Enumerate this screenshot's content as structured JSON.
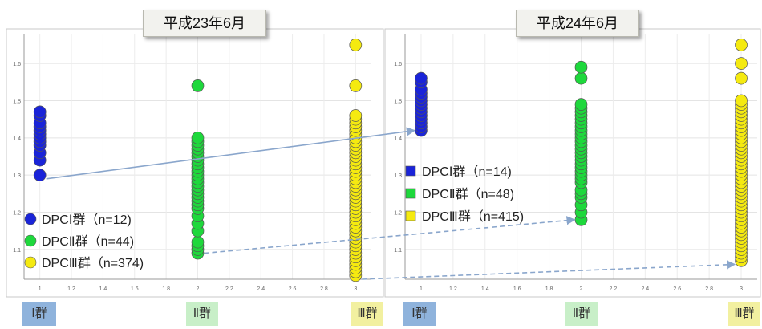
{
  "colors": {
    "group1": "#1a24d8",
    "group2": "#1ed83c",
    "group3": "#f5ea10",
    "group1_label_bg": "#8fb3dc",
    "group2_label_bg": "#c8efc8",
    "group3_label_bg": "#f2f0a0",
    "arrow": "#8aa6cc"
  },
  "group_labels": [
    "Ⅰ群",
    "Ⅱ群",
    "Ⅲ群"
  ],
  "chart_data": [
    {
      "type": "scatter",
      "title": "平成23年6月",
      "xlim": [
        0.9,
        3.1
      ],
      "ylim": [
        1.02,
        1.68
      ],
      "x_ticks": [
        "1",
        "1.2",
        "1.4",
        "1.6",
        "1.8",
        "2",
        "2.2",
        "2.4",
        "2.6",
        "2.8",
        "3"
      ],
      "y_ticks": [
        "1.1",
        "1.2",
        "1.3",
        "1.4",
        "1.5",
        "1.6"
      ],
      "legend_position": "bottom-left",
      "legend_marker": "circle",
      "series": [
        {
          "name": "DPCⅠ群（n=12)",
          "x": 1,
          "values": [
            1.3,
            1.34,
            1.36,
            1.38,
            1.39,
            1.4,
            1.41,
            1.42,
            1.43,
            1.44,
            1.46,
            1.47
          ]
        },
        {
          "name": "DPCⅡ群（n=44)",
          "x": 2,
          "values": [
            1.09,
            1.1,
            1.11,
            1.12,
            1.15,
            1.17,
            1.19,
            1.21,
            1.22,
            1.23,
            1.24,
            1.25,
            1.26,
            1.27,
            1.28,
            1.29,
            1.3,
            1.31,
            1.32,
            1.33,
            1.34,
            1.35,
            1.36,
            1.37,
            1.38,
            1.39,
            1.4,
            1.54
          ]
        },
        {
          "name": "DPCⅢ群（n=374)",
          "x": 3,
          "values": [
            1.03,
            1.04,
            1.05,
            1.06,
            1.07,
            1.08,
            1.09,
            1.1,
            1.11,
            1.12,
            1.13,
            1.14,
            1.15,
            1.16,
            1.17,
            1.18,
            1.19,
            1.2,
            1.21,
            1.22,
            1.23,
            1.24,
            1.25,
            1.26,
            1.27,
            1.28,
            1.29,
            1.3,
            1.31,
            1.32,
            1.33,
            1.34,
            1.35,
            1.36,
            1.37,
            1.38,
            1.39,
            1.4,
            1.41,
            1.42,
            1.43,
            1.44,
            1.45,
            1.46,
            1.54,
            1.65
          ]
        }
      ]
    },
    {
      "type": "scatter",
      "title": "平成24年6月",
      "xlim": [
        0.9,
        3.1
      ],
      "ylim": [
        1.02,
        1.68
      ],
      "x_ticks": [
        "1",
        "1.2",
        "1.4",
        "1.6",
        "1.8",
        "2",
        "2.2",
        "2.4",
        "2.6",
        "2.8",
        "3"
      ],
      "y_ticks": [
        "1.1",
        "1.2",
        "1.3",
        "1.4",
        "1.5",
        "1.6"
      ],
      "legend_position": "middle-left",
      "legend_marker": "square",
      "series": [
        {
          "name": "DPCⅠ群（n=14)",
          "x": 1,
          "values": [
            1.42,
            1.43,
            1.44,
            1.45,
            1.46,
            1.47,
            1.48,
            1.49,
            1.5,
            1.51,
            1.52,
            1.53,
            1.55,
            1.56
          ]
        },
        {
          "name": "DPCⅡ群（n=48)",
          "x": 2,
          "values": [
            1.18,
            1.2,
            1.22,
            1.24,
            1.25,
            1.26,
            1.28,
            1.29,
            1.3,
            1.31,
            1.32,
            1.33,
            1.34,
            1.35,
            1.36,
            1.37,
            1.38,
            1.39,
            1.4,
            1.41,
            1.42,
            1.43,
            1.44,
            1.45,
            1.46,
            1.47,
            1.48,
            1.49,
            1.56,
            1.59
          ]
        },
        {
          "name": "DPCⅢ群（n=415)",
          "x": 3,
          "values": [
            1.07,
            1.08,
            1.09,
            1.1,
            1.11,
            1.12,
            1.13,
            1.14,
            1.15,
            1.16,
            1.17,
            1.18,
            1.19,
            1.2,
            1.21,
            1.22,
            1.23,
            1.24,
            1.25,
            1.26,
            1.27,
            1.28,
            1.29,
            1.3,
            1.31,
            1.32,
            1.33,
            1.34,
            1.35,
            1.36,
            1.37,
            1.38,
            1.39,
            1.4,
            1.41,
            1.42,
            1.43,
            1.44,
            1.45,
            1.46,
            1.47,
            1.48,
            1.49,
            1.5,
            1.56,
            1.6,
            1.65
          ]
        }
      ]
    }
  ],
  "arrows": [
    {
      "from_chart": 0,
      "from_x": 1,
      "from_y": 1.29,
      "to_chart": 1,
      "to_x": 1,
      "to_y": 1.42,
      "style": "solid"
    },
    {
      "from_chart": 0,
      "from_x": 2,
      "from_y": 1.09,
      "to_chart": 1,
      "to_x": 2,
      "to_y": 1.18,
      "style": "dashed"
    },
    {
      "from_chart": 0,
      "from_x": 3,
      "from_y": 1.02,
      "to_chart": 1,
      "to_x": 3,
      "to_y": 1.06,
      "style": "dashed"
    }
  ]
}
